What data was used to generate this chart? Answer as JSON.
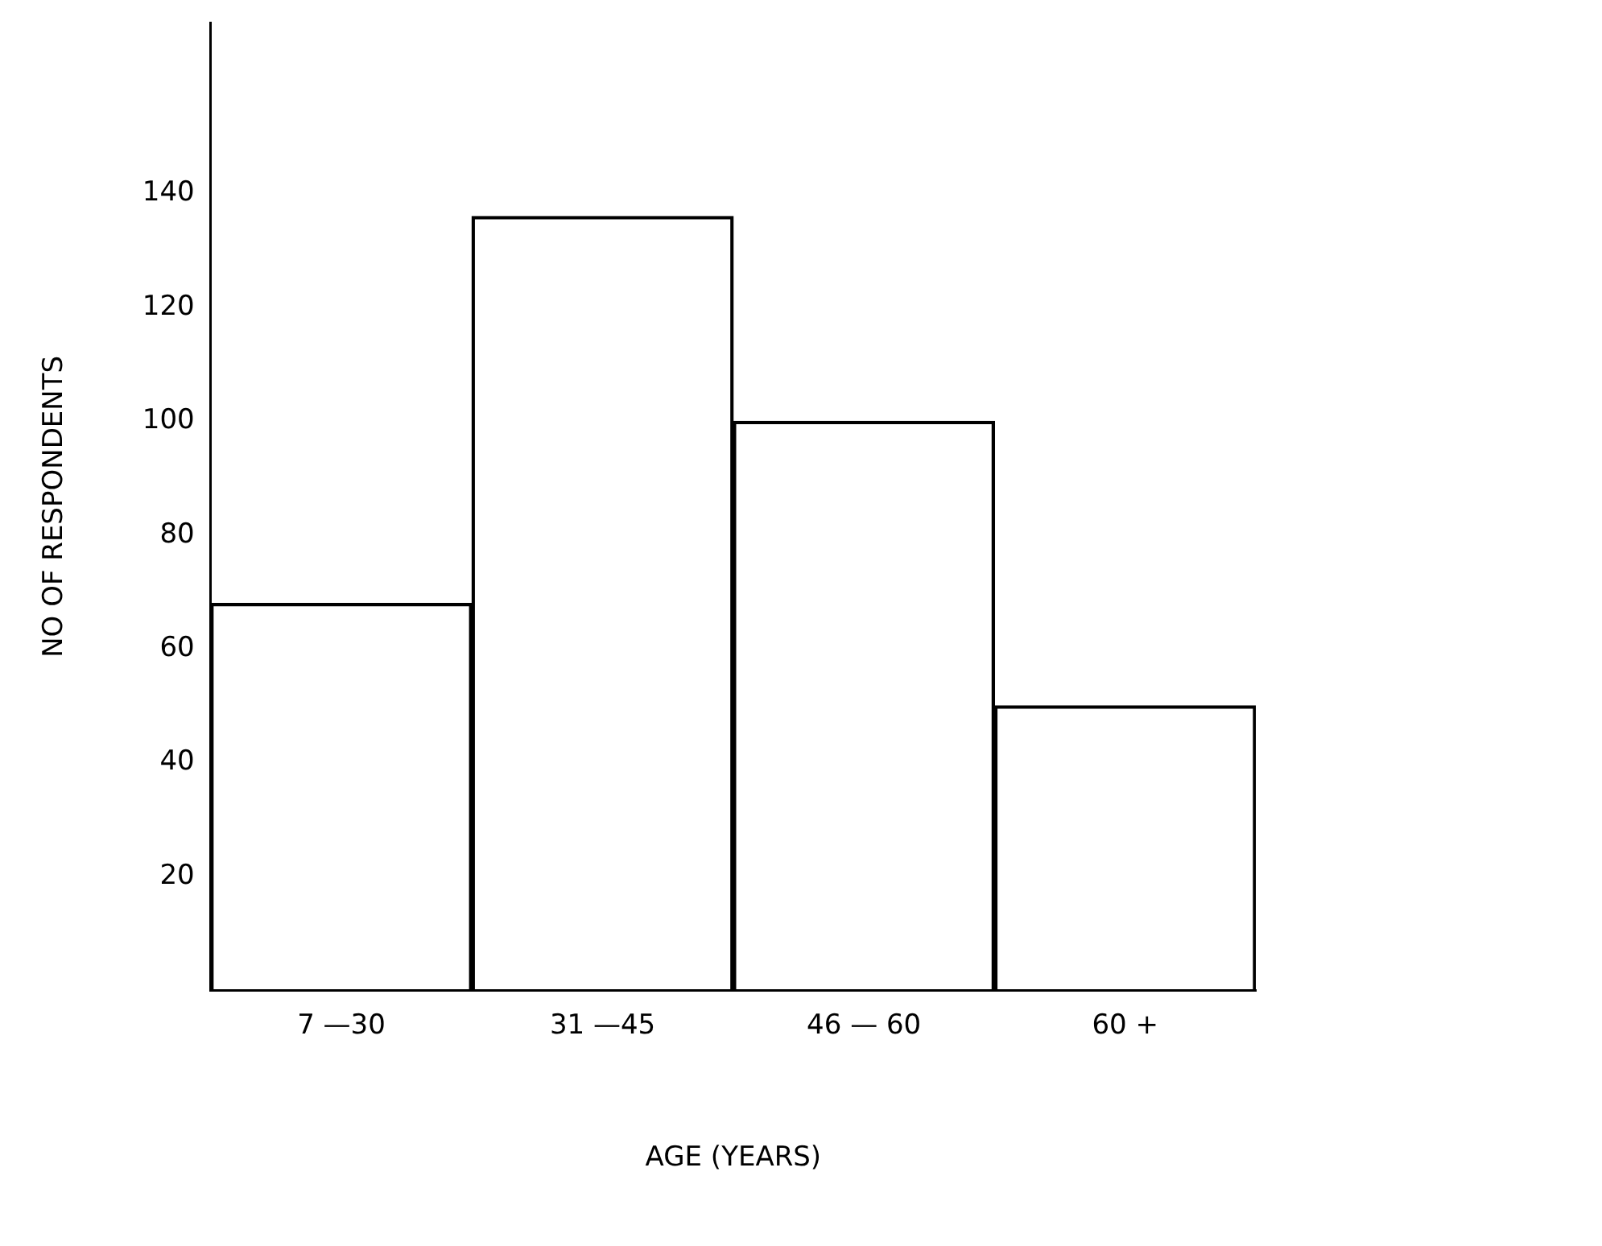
{
  "chart_data": {
    "type": "bar",
    "categories": [
      "7 —30",
      "31 —45",
      "46 — 60",
      "60 +"
    ],
    "values": [
      68,
      136,
      100,
      50
    ],
    "color": "#000000",
    "ylim": [
      0,
      170
    ],
    "yticks": [
      20,
      40,
      60,
      80,
      100,
      120,
      140
    ],
    "xlabel": "AGE (YEARS)",
    "ylabel": "NO OF RESPONDENTS",
    "grid": false,
    "legend": false
  }
}
